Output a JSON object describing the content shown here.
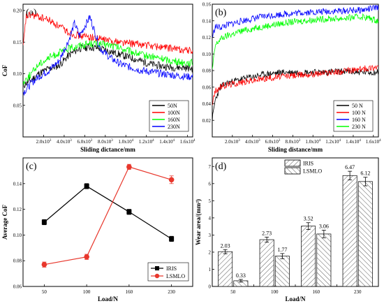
{
  "chart_data": [
    {
      "id": "a",
      "type": "line",
      "panel_label": "(a)",
      "xlabel": "Sliding dictance/mm",
      "ylabel": "CoF",
      "xlim": [
        0,
        16500
      ],
      "ylim": [
        0,
        0.21
      ],
      "xticks": [
        {
          "value": 2000,
          "mant": "2.0x10",
          "exp": "3"
        },
        {
          "value": 4000,
          "mant": "4.0x10",
          "exp": "3"
        },
        {
          "value": 6000,
          "mant": "6.0x10",
          "exp": "3"
        },
        {
          "value": 8000,
          "mant": "8.0x10",
          "exp": "3"
        },
        {
          "value": 10000,
          "mant": "1.0x10",
          "exp": "4"
        },
        {
          "value": 12000,
          "mant": "1.2x10",
          "exp": "4"
        },
        {
          "value": 14000,
          "mant": "1.4x10",
          "exp": "4"
        },
        {
          "value": 16000,
          "mant": "1.6x10",
          "exp": "4"
        }
      ],
      "yticks": [
        {
          "value": 0.05,
          "label": "0.05"
        },
        {
          "value": 0.1,
          "label": "0.10"
        },
        {
          "value": 0.15,
          "label": "0.15"
        },
        {
          "value": 0.2,
          "label": "0.20"
        }
      ],
      "legend": "bottom-right",
      "series": [
        {
          "name": "50N",
          "color": "#000000",
          "x": [
            0,
            300,
            800,
            1500,
            2500,
            3500,
            4500,
            5500,
            6500,
            7500,
            8500,
            9500,
            10500,
            11500,
            12500,
            13500,
            14500,
            15500,
            16500
          ],
          "y": [
            0.08,
            0.085,
            0.09,
            0.1,
            0.108,
            0.113,
            0.13,
            0.14,
            0.142,
            0.14,
            0.135,
            0.13,
            0.125,
            0.12,
            0.115,
            0.112,
            0.11,
            0.11,
            0.108
          ]
        },
        {
          "name": "100N",
          "color": "#ff0000",
          "x": [
            0,
            300,
            800,
            1500,
            2500,
            3500,
            4500,
            5500,
            6500,
            7500,
            8500,
            9500,
            10500,
            11500,
            12500,
            13500,
            14500,
            15500,
            16500
          ],
          "y": [
            0.14,
            0.19,
            0.193,
            0.19,
            0.185,
            0.175,
            0.165,
            0.16,
            0.158,
            0.155,
            0.152,
            0.15,
            0.148,
            0.146,
            0.144,
            0.142,
            0.14,
            0.138,
            0.136
          ]
        },
        {
          "name": "160N",
          "color": "#00ff00",
          "x": [
            0,
            300,
            800,
            1500,
            2500,
            3500,
            4500,
            5500,
            6500,
            7500,
            8500,
            9500,
            10500,
            11500,
            12500,
            13500,
            14500,
            15500,
            16500
          ],
          "y": [
            0.085,
            0.092,
            0.1,
            0.115,
            0.125,
            0.133,
            0.14,
            0.145,
            0.148,
            0.147,
            0.145,
            0.14,
            0.135,
            0.13,
            0.127,
            0.124,
            0.12,
            0.118,
            0.117
          ]
        },
        {
          "name": "230N",
          "color": "#0000ff",
          "x": [
            0,
            300,
            800,
            1500,
            2500,
            3500,
            4500,
            5000,
            5500,
            6000,
            6500,
            7000,
            7500,
            8500,
            9500,
            10500,
            11500,
            12500,
            13500,
            14500,
            15500,
            16500
          ],
          "y": [
            0.07,
            0.075,
            0.085,
            0.095,
            0.105,
            0.12,
            0.155,
            0.18,
            0.16,
            0.175,
            0.19,
            0.165,
            0.14,
            0.125,
            0.115,
            0.11,
            0.105,
            0.103,
            0.1,
            0.098,
            0.096,
            0.095
          ]
        }
      ]
    },
    {
      "id": "b",
      "type": "line",
      "panel_label": "(b)",
      "xlabel": "Sliding distance/mm",
      "ylabel": "",
      "xlim": [
        0,
        16500
      ],
      "ylim": [
        0,
        0.16
      ],
      "xticks": [
        {
          "value": 2000,
          "mant": "2.0x10",
          "exp": "3"
        },
        {
          "value": 4000,
          "mant": "4.0x10",
          "exp": "3"
        },
        {
          "value": 6000,
          "mant": "6.0x10",
          "exp": "3"
        },
        {
          "value": 8000,
          "mant": "8.0x10",
          "exp": "3"
        },
        {
          "value": 10000,
          "mant": "1.0x10",
          "exp": "4"
        },
        {
          "value": 12000,
          "mant": "1.2x10",
          "exp": "4"
        },
        {
          "value": 14000,
          "mant": "1.4x10",
          "exp": "4"
        },
        {
          "value": 16000,
          "mant": "1.6x10",
          "exp": "4"
        }
      ],
      "yticks": [
        {
          "value": 0.02,
          "label": "0.02"
        },
        {
          "value": 0.04,
          "label": "0.04"
        },
        {
          "value": 0.06,
          "label": "0.06"
        },
        {
          "value": 0.08,
          "label": "0.08"
        },
        {
          "value": 0.1,
          "label": "0.10"
        },
        {
          "value": 0.12,
          "label": "0.12"
        },
        {
          "value": 0.14,
          "label": "0.14"
        },
        {
          "value": 0.16,
          "label": "0.16"
        }
      ],
      "legend": "bottom-right",
      "series": [
        {
          "name": "50 N",
          "color": "#000000",
          "x": [
            0,
            300,
            800,
            1500,
            3000,
            5000,
            7000,
            9000,
            11000,
            13000,
            15000,
            16500
          ],
          "y": [
            0.02,
            0.045,
            0.06,
            0.065,
            0.07,
            0.075,
            0.078,
            0.078,
            0.078,
            0.079,
            0.078,
            0.078
          ]
        },
        {
          "name": "100 N",
          "color": "#ff0000",
          "x": [
            0,
            300,
            800,
            1500,
            3000,
            5000,
            7000,
            9000,
            11000,
            13000,
            15000,
            16500
          ],
          "y": [
            0.04,
            0.055,
            0.06,
            0.063,
            0.066,
            0.07,
            0.073,
            0.075,
            0.077,
            0.079,
            0.082,
            0.085
          ]
        },
        {
          "name": "160 N",
          "color": "#0000ff",
          "x": [
            0,
            300,
            800,
            1500,
            3000,
            5000,
            7000,
            9000,
            11000,
            13000,
            15000,
            16500
          ],
          "y": [
            0.12,
            0.133,
            0.132,
            0.135,
            0.14,
            0.145,
            0.148,
            0.15,
            0.151,
            0.152,
            0.153,
            0.156
          ]
        },
        {
          "name": "230 N",
          "color": "#00ff00",
          "x": [
            0,
            300,
            800,
            1500,
            3000,
            5000,
            7000,
            9000,
            11000,
            13000,
            15000,
            16500
          ],
          "y": [
            0.08,
            0.11,
            0.118,
            0.122,
            0.128,
            0.133,
            0.137,
            0.14,
            0.142,
            0.143,
            0.145,
            0.14
          ]
        }
      ]
    },
    {
      "id": "c",
      "type": "line",
      "panel_label": "(c)",
      "xlabel": "Load/N",
      "ylabel": "Average CoF",
      "categories": [
        "50",
        "100",
        "160",
        "230"
      ],
      "ylim": [
        0.06,
        0.16
      ],
      "yticks": [
        {
          "value": 0.06,
          "label": "0.06"
        },
        {
          "value": 0.08,
          "label": "0.08"
        },
        {
          "value": 0.1,
          "label": "0.10"
        },
        {
          "value": 0.12,
          "label": "0.12"
        },
        {
          "value": 0.14,
          "label": "0.14"
        }
      ],
      "legend": "bottom-right",
      "series": [
        {
          "name": "IRIS",
          "color": "#000000",
          "marker": "square",
          "values": [
            0.11,
            0.138,
            0.118,
            0.097
          ],
          "errors": [
            0.002,
            0.002,
            0.002,
            0.002
          ]
        },
        {
          "name": "LSMLO",
          "color": "#e8372c",
          "marker": "circle",
          "values": [
            0.077,
            0.083,
            0.153,
            0.143
          ],
          "errors": [
            0.002,
            0.002,
            0.002,
            0.003
          ]
        }
      ]
    },
    {
      "id": "d",
      "type": "bar",
      "panel_label": "(d)",
      "xlabel": "Load/N",
      "ylabel": "Wear area/(mm²)",
      "categories": [
        "50",
        "100",
        "160",
        "230"
      ],
      "ylim": [
        0,
        7.5
      ],
      "yticks": [
        {
          "value": 0,
          "label": "0"
        },
        {
          "value": 1,
          "label": "1"
        },
        {
          "value": 2,
          "label": "2"
        },
        {
          "value": 3,
          "label": "3"
        },
        {
          "value": 4,
          "label": "4"
        },
        {
          "value": 5,
          "label": "5"
        },
        {
          "value": 6,
          "label": "6"
        },
        {
          "value": 7,
          "label": "7"
        }
      ],
      "legend": "top-left",
      "series": [
        {
          "name": "IRIS",
          "pattern": "hatch-forward",
          "values": [
            2.03,
            2.73,
            3.52,
            6.47
          ],
          "errors": [
            0.12,
            0.15,
            0.2,
            0.25
          ],
          "labels": [
            "2.03",
            "2.73",
            "3.52",
            "6.47"
          ]
        },
        {
          "name": "LSMLO",
          "pattern": "hatch-back",
          "values": [
            0.33,
            1.77,
            3.06,
            6.12
          ],
          "errors": [
            0.08,
            0.15,
            0.22,
            0.25
          ],
          "labels": [
            "0.33",
            "1.77",
            "3.06",
            "6.12"
          ]
        }
      ]
    }
  ]
}
